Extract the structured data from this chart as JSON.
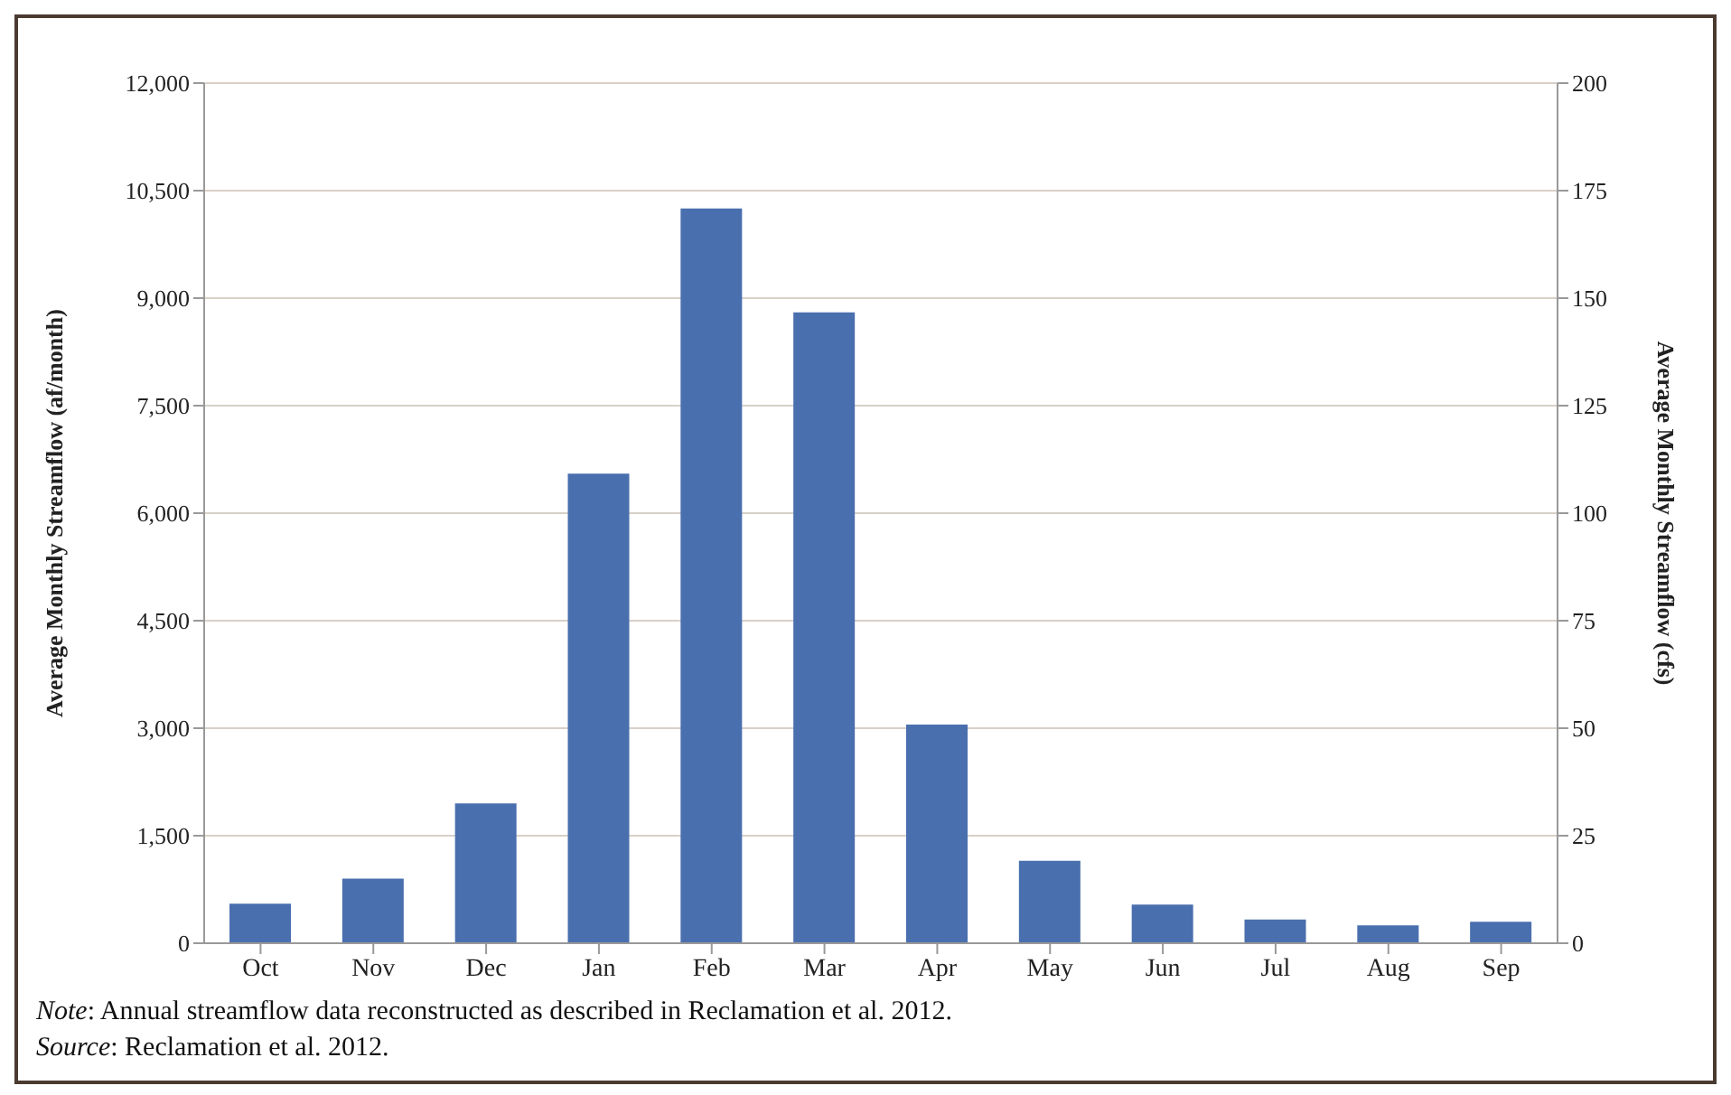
{
  "chart_data": {
    "type": "bar",
    "categories": [
      "Oct",
      "Nov",
      "Dec",
      "Jan",
      "Feb",
      "Mar",
      "Apr",
      "May",
      "Jun",
      "Jul",
      "Aug",
      "Sep"
    ],
    "values": [
      550,
      900,
      1950,
      6550,
      10250,
      8800,
      3050,
      1150,
      540,
      330,
      250,
      300
    ],
    "color": "#4a6fae",
    "ylabel": "Average Monthly Streamflow (af/month)",
    "y2label": "Average Monthly Streamflow (cfs)",
    "ylim": [
      0,
      12000
    ],
    "yticks": [
      0,
      {
        "value": 1500,
        "label": "1,500"
      },
      {
        "value": 3000,
        "label": "3,000"
      },
      {
        "value": 4500,
        "label": "4,500"
      },
      {
        "value": 6000,
        "label": "6,000"
      },
      {
        "value": 7500,
        "label": "7,500"
      },
      {
        "value": 9000,
        "label": "9,000"
      },
      {
        "value": 10500,
        "label": "10,500"
      },
      {
        "value": 12000,
        "label": "12,000"
      }
    ],
    "y2lim": [
      0,
      200
    ],
    "y2ticks": [
      0,
      25,
      50,
      75,
      100,
      125,
      150,
      175,
      200
    ],
    "grid": "y",
    "annotations": [
      "Note: Annual streamflow data reconstructed as described in Reclamation et al. 2012.",
      "Source: Reclamation et al. 2012."
    ]
  }
}
